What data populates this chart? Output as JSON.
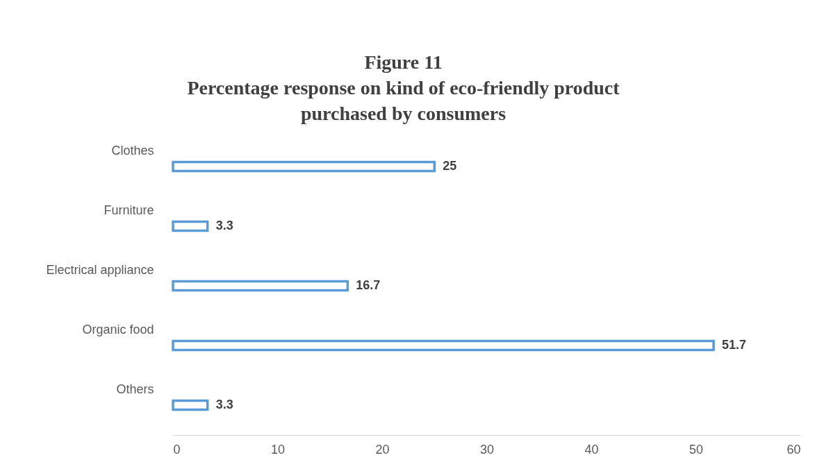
{
  "chart_data": {
    "type": "bar",
    "orientation": "horizontal",
    "title": "Figure 11\nPercentage response on kind of eco-friendly product\npurchased by consumers",
    "categories": [
      "Clothes",
      "Furniture",
      "Electrical appliance",
      "Organic food",
      "Others"
    ],
    "values": [
      25,
      3.3,
      16.7,
      51.7,
      3.3
    ],
    "color": "#5b9bd5",
    "data_labels": true,
    "xlim": [
      0,
      60
    ],
    "xticks": [
      0,
      10,
      20,
      30,
      40,
      50,
      60
    ]
  }
}
